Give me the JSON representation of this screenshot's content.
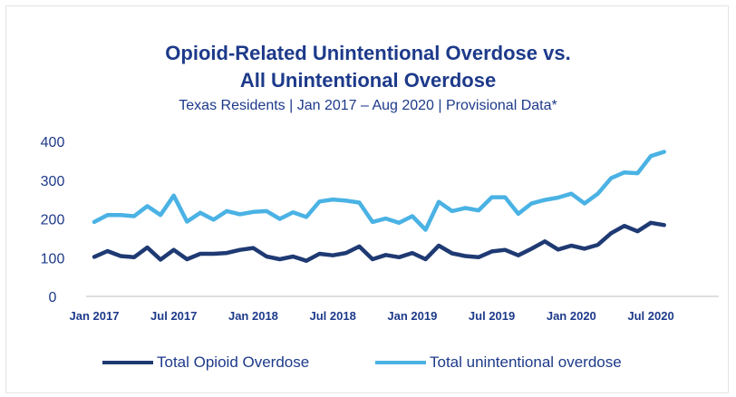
{
  "chart_data": {
    "type": "line",
    "title_line1": "Opioid-Related Unintentional Overdose vs.",
    "title_line2": "All Unintentional Overdose",
    "subtitle": "Texas Residents  |  Jan 2017 – Aug 2020  | Provisional Data*",
    "ylim": [
      0,
      400
    ],
    "yticks": [
      0,
      100,
      200,
      300,
      400
    ],
    "xtick_labels": [
      "Jan 2017",
      "Jul 2017",
      "Jan 2018",
      "Jul 2018",
      "Jan 2019",
      "Jul 2019",
      "Jan 2020",
      "Jul 2020"
    ],
    "legend_position": "bottom",
    "x": [
      "Jan 2017",
      "Feb 2017",
      "Mar 2017",
      "Apr 2017",
      "May 2017",
      "Jun 2017",
      "Jul 2017",
      "Aug 2017",
      "Sep 2017",
      "Oct 2017",
      "Nov 2017",
      "Dec 2017",
      "Jan 2018",
      "Feb 2018",
      "Mar 2018",
      "Apr 2018",
      "May 2018",
      "Jun 2018",
      "Jul 2018",
      "Aug 2018",
      "Sep 2018",
      "Oct 2018",
      "Nov 2018",
      "Dec 2018",
      "Jan 2019",
      "Feb 2019",
      "Mar 2019",
      "Apr 2019",
      "May 2019",
      "Jun 2019",
      "Jul 2019",
      "Aug 2019",
      "Sep 2019",
      "Oct 2019",
      "Nov 2019",
      "Dec 2019",
      "Jan 2020",
      "Feb 2020",
      "Mar 2020",
      "Apr 2020",
      "May 2020",
      "Jun 2020",
      "Jul 2020",
      "Aug 2020"
    ],
    "series": [
      {
        "name": "Total Opioid Overdose",
        "color": "#1f3a73",
        "values": [
          102,
          117,
          104,
          101,
          126,
          95,
          120,
          96,
          110,
          110,
          112,
          120,
          125,
          103,
          96,
          103,
          92,
          110,
          106,
          112,
          129,
          96,
          107,
          101,
          112,
          96,
          131,
          111,
          104,
          101,
          116,
          120,
          106,
          123,
          142,
          121,
          131,
          123,
          133,
          163,
          182,
          168,
          190,
          184
        ]
      },
      {
        "name": "Total unintentional overdose",
        "color": "#4ab2e4",
        "values": [
          192,
          210,
          210,
          207,
          233,
          210,
          260,
          193,
          216,
          198,
          220,
          212,
          218,
          220,
          200,
          217,
          205,
          245,
          250,
          247,
          242,
          192,
          201,
          190,
          207,
          172,
          244,
          220,
          228,
          222,
          256,
          256,
          213,
          240,
          249,
          255,
          265,
          240,
          265,
          305,
          320,
          318,
          362,
          373
        ]
      }
    ]
  }
}
